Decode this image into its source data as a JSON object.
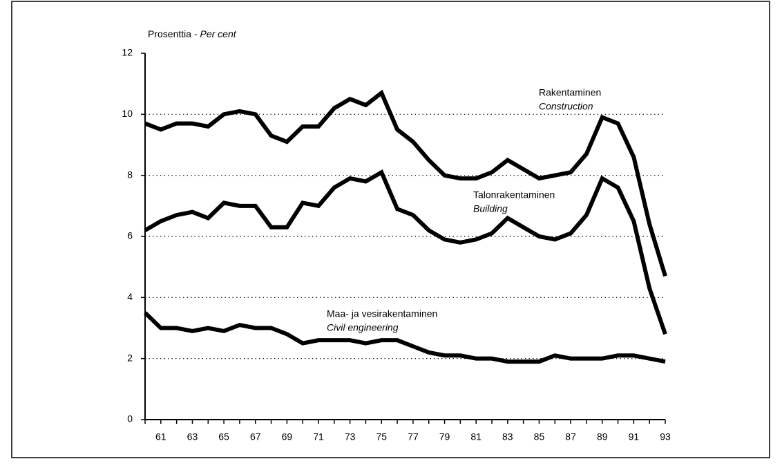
{
  "chart_data": {
    "type": "line",
    "ylabel_parts": [
      "Prosenttia",
      "-",
      "Per cent"
    ],
    "x": [
      60,
      61,
      62,
      63,
      64,
      65,
      66,
      67,
      68,
      69,
      70,
      71,
      72,
      73,
      74,
      75,
      76,
      77,
      78,
      79,
      80,
      81,
      82,
      83,
      84,
      85,
      86,
      87,
      88,
      89,
      90,
      91,
      92,
      93
    ],
    "xlim": [
      60,
      93
    ],
    "xticks": [
      61,
      63,
      65,
      67,
      69,
      71,
      73,
      75,
      77,
      79,
      81,
      83,
      85,
      87,
      89,
      91,
      93
    ],
    "ylim": [
      0,
      12
    ],
    "yticks": [
      0,
      2,
      4,
      6,
      8,
      10,
      12
    ],
    "grid": true,
    "series": [
      {
        "name": "Rakentaminen",
        "name_en": "Construction",
        "color": "#000000",
        "values": [
          9.7,
          9.5,
          9.7,
          9.7,
          9.6,
          10.0,
          10.1,
          10.0,
          9.3,
          9.1,
          9.6,
          9.6,
          10.2,
          10.5,
          10.3,
          10.7,
          9.5,
          9.1,
          8.5,
          8.0,
          7.9,
          7.9,
          8.1,
          8.5,
          8.2,
          7.9,
          8.0,
          8.1,
          8.7,
          9.9,
          9.7,
          8.6,
          6.4,
          4.7
        ]
      },
      {
        "name": "Talonrakentaminen",
        "name_en": "Building",
        "color": "#000000",
        "values": [
          6.2,
          6.5,
          6.7,
          6.8,
          6.6,
          7.1,
          7.0,
          7.0,
          6.3,
          6.3,
          7.1,
          7.0,
          7.6,
          7.9,
          7.8,
          8.1,
          6.9,
          6.7,
          6.2,
          5.9,
          5.8,
          5.9,
          6.1,
          6.6,
          6.3,
          6.0,
          5.9,
          6.1,
          6.7,
          7.9,
          7.6,
          6.5,
          4.3,
          2.8
        ]
      },
      {
        "name": "Maa- ja vesirakentaminen",
        "name_en": "Civil engineering",
        "color": "#000000",
        "values": [
          3.5,
          3.0,
          3.0,
          2.9,
          3.0,
          2.9,
          3.1,
          3.0,
          3.0,
          2.8,
          2.5,
          2.6,
          2.6,
          2.6,
          2.5,
          2.6,
          2.6,
          2.4,
          2.2,
          2.1,
          2.1,
          2.0,
          2.0,
          1.9,
          1.9,
          1.9,
          2.1,
          2.0,
          2.0,
          2.0,
          2.1,
          2.1,
          2.0,
          1.9
        ]
      }
    ]
  }
}
